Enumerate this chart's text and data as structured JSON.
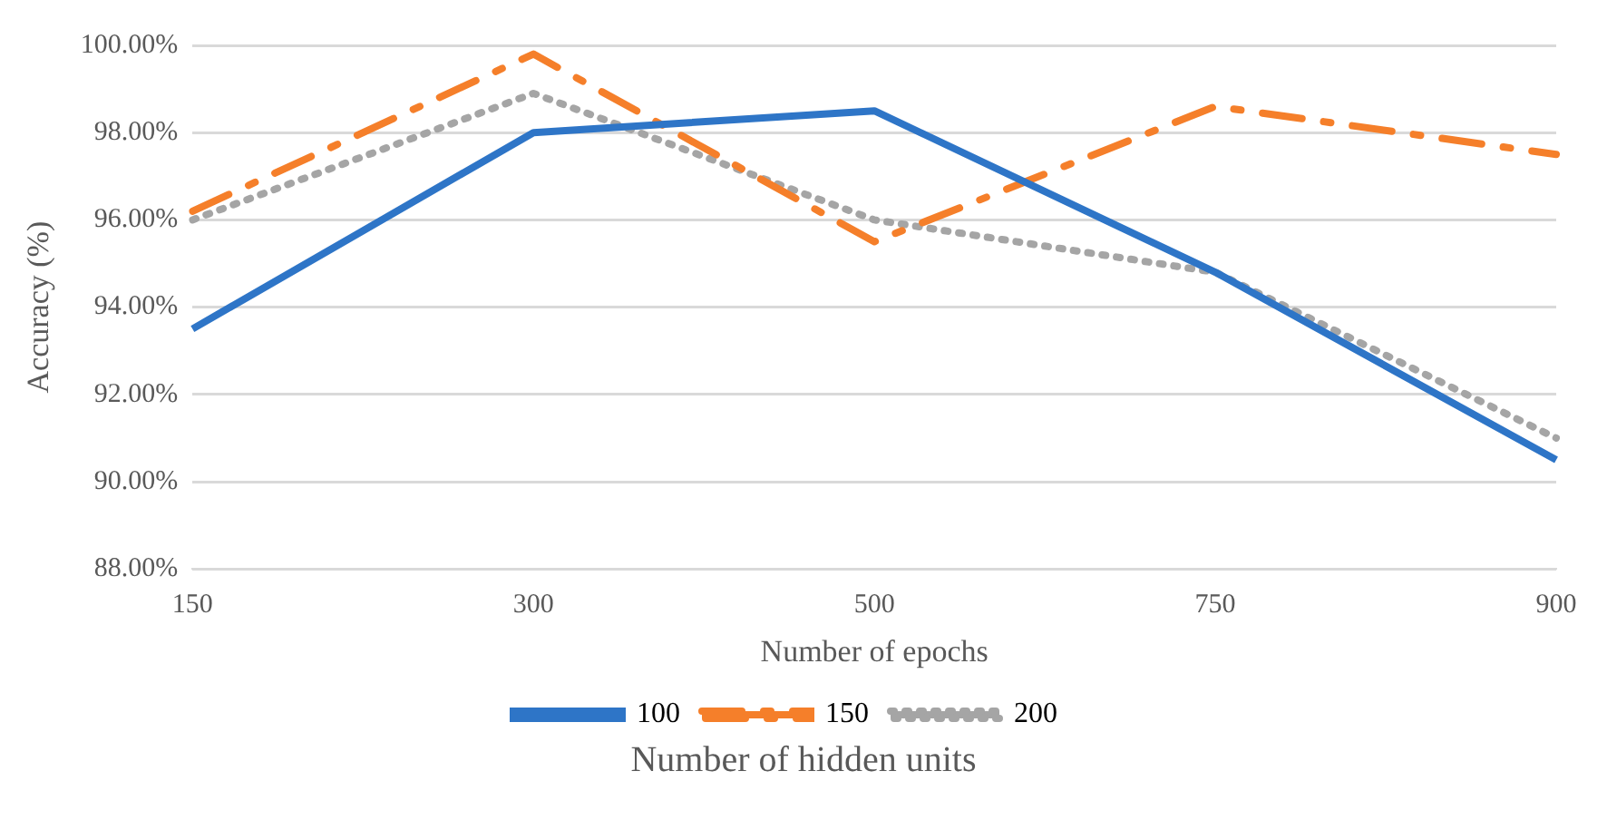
{
  "chart_data": {
    "type": "line",
    "xlabel": "Number of epochs",
    "ylabel": "Accuracy (%)",
    "legend_title": "Number of hidden units",
    "categories": [
      "150",
      "300",
      "500",
      "750",
      "900"
    ],
    "series": [
      {
        "name": "100",
        "color": "#2e75c7",
        "line_style": "solid",
        "values": [
          93.5,
          98.0,
          98.5,
          94.8,
          90.5
        ]
      },
      {
        "name": "150",
        "color": "#f57f2a",
        "line_style": "dashed",
        "values": [
          96.2,
          99.8,
          95.5,
          98.6,
          97.5
        ]
      },
      {
        "name": "200",
        "color": "#a5a5a5",
        "line_style": "dotted",
        "values": [
          96.0,
          98.9,
          96.0,
          94.8,
          91.0
        ]
      }
    ],
    "ylim": [
      88,
      100
    ],
    "yticks": [
      {
        "value": 88,
        "label": "88.00%"
      },
      {
        "value": 90,
        "label": "90.00%"
      },
      {
        "value": 92,
        "label": "92.00%"
      },
      {
        "value": 94,
        "label": "94.00%"
      },
      {
        "value": 96,
        "label": "96.00%"
      },
      {
        "value": 98,
        "label": "98.00%"
      },
      {
        "value": 100,
        "label": "100.00%"
      }
    ],
    "grid": "y",
    "legend": "bottom",
    "marker": "none"
  }
}
